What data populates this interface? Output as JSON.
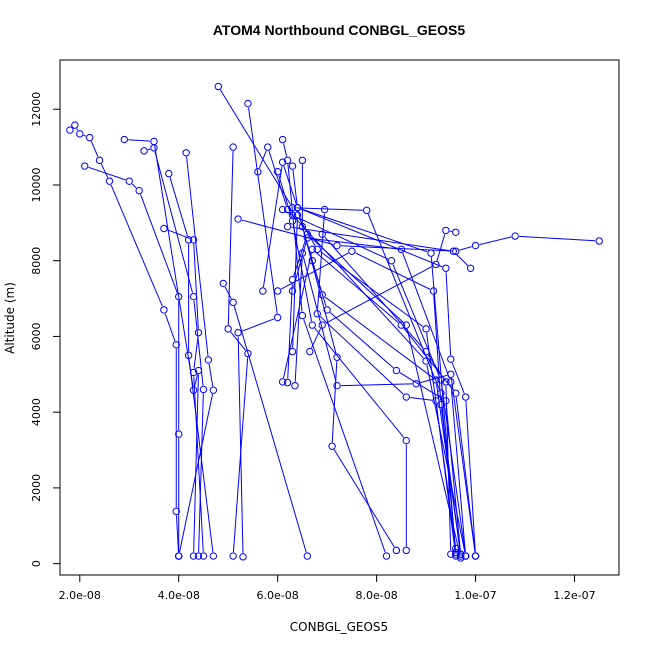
{
  "chart_data": {
    "type": "scatter",
    "title": "ATOM4 Northbound CONBGL_GEOS5",
    "xlabel": "CONBGL_GEOS5",
    "ylabel": "Altitude (m)",
    "xlim": [
      1.6e-08,
      1.29e-07
    ],
    "ylim": [
      -300,
      13300
    ],
    "xticks": [
      {
        "value": 2e-08,
        "label": "2.0e-08"
      },
      {
        "value": 4e-08,
        "label": "4.0e-08"
      },
      {
        "value": 6e-08,
        "label": "6.0e-08"
      },
      {
        "value": 8e-08,
        "label": "8.0e-08"
      },
      {
        "value": 1e-07,
        "label": "1.0e-07"
      },
      {
        "value": 1.2e-07,
        "label": "1.2e-07"
      }
    ],
    "yticks": [
      {
        "value": 0,
        "label": "0"
      },
      {
        "value": 2000,
        "label": "2000"
      },
      {
        "value": 4000,
        "label": "4000"
      },
      {
        "value": 6000,
        "label": "6000"
      },
      {
        "value": 8000,
        "label": "8000"
      },
      {
        "value": 10000,
        "label": "10000"
      },
      {
        "value": 12000,
        "label": "12000"
      }
    ],
    "grid": false,
    "legend": "none",
    "color": "#0000ff",
    "markers": "open-circle",
    "series": [
      {
        "points": [
          [
            1.8e-08,
            11450
          ],
          [
            1.9e-08,
            11580
          ],
          [
            2e-08,
            11350
          ],
          [
            2.2e-08,
            11250
          ],
          [
            2.4e-08,
            10650
          ],
          [
            2.6e-08,
            10100
          ],
          [
            3.7e-08,
            6700
          ],
          [
            3.95e-08,
            5780
          ],
          [
            3.95e-08,
            1380
          ],
          [
            4e-08,
            200
          ]
        ]
      },
      {
        "points": [
          [
            2.1e-08,
            10500
          ],
          [
            3e-08,
            10100
          ],
          [
            3.2e-08,
            9850
          ],
          [
            4e-08,
            7050
          ],
          [
            4e-08,
            3420
          ],
          [
            4e-08,
            200
          ]
        ]
      },
      {
        "points": [
          [
            2.9e-08,
            11200
          ],
          [
            3.5e-08,
            11150
          ],
          [
            4.3e-08,
            4580
          ],
          [
            4.4e-08,
            5100
          ],
          [
            4.3e-08,
            200
          ]
        ]
      },
      {
        "points": [
          [
            3.3e-08,
            10900
          ],
          [
            3.5e-08,
            10980
          ],
          [
            4.3e-08,
            7050
          ],
          [
            4.5e-08,
            4600
          ],
          [
            4.4e-08,
            200
          ]
        ]
      },
      {
        "points": [
          [
            3.8e-08,
            10300
          ],
          [
            4.2e-08,
            8550
          ],
          [
            4.2e-08,
            5500
          ],
          [
            4.7e-08,
            200
          ]
        ]
      },
      {
        "points": [
          [
            3.7e-08,
            8850
          ],
          [
            4.3e-08,
            8550
          ],
          [
            4.4e-08,
            6100
          ],
          [
            4.3e-08,
            5050
          ],
          [
            4.5e-08,
            200
          ]
        ]
      },
      {
        "points": [
          [
            4.15e-08,
            10850
          ],
          [
            4.6e-08,
            5380
          ],
          [
            4.7e-08,
            4580
          ],
          [
            4e-08,
            200
          ]
        ]
      },
      {
        "points": [
          [
            4.8e-08,
            12600
          ],
          [
            6.3e-08,
            9400
          ],
          [
            7.8e-08,
            9330
          ],
          [
            9.3e-08,
            4500
          ],
          [
            9.6e-08,
            300
          ]
        ]
      },
      {
        "points": [
          [
            5.1e-08,
            11000
          ],
          [
            5e-08,
            6200
          ],
          [
            5.4e-08,
            5550
          ],
          [
            5.1e-08,
            200
          ]
        ]
      },
      {
        "points": [
          [
            5.4e-08,
            12150
          ],
          [
            6e-08,
            6500
          ],
          [
            5.2e-08,
            6100
          ],
          [
            5.3e-08,
            180
          ]
        ]
      },
      {
        "points": [
          [
            4.9e-08,
            7400
          ],
          [
            5.1e-08,
            6900
          ],
          [
            6.6e-08,
            200
          ]
        ]
      },
      {
        "points": [
          [
            5.2e-08,
            9100
          ],
          [
            7.2e-08,
            8400
          ],
          [
            9.6e-08,
            8250
          ],
          [
            1e-07,
            8400
          ],
          [
            1.08e-07,
            8650
          ],
          [
            1.25e-07,
            8520
          ]
        ]
      },
      {
        "points": [
          [
            5.6e-08,
            10350
          ],
          [
            5.8e-08,
            11000
          ],
          [
            6.2e-08,
            9350
          ],
          [
            9e-08,
            5350
          ],
          [
            9.8e-08,
            200
          ]
        ]
      },
      {
        "points": [
          [
            5.7e-08,
            7200
          ],
          [
            6.1e-08,
            10600
          ],
          [
            6.4e-08,
            9400
          ],
          [
            9.1e-08,
            8200
          ],
          [
            9.6e-08,
            250
          ]
        ]
      },
      {
        "points": [
          [
            6.1e-08,
            11200
          ],
          [
            6.2e-08,
            10650
          ],
          [
            6.5e-08,
            6550
          ],
          [
            8.2e-08,
            200
          ]
        ]
      },
      {
        "points": [
          [
            6e-08,
            10350
          ],
          [
            6.3e-08,
            9050
          ],
          [
            6.7e-08,
            6300
          ],
          [
            8.6e-08,
            3250
          ],
          [
            8.6e-08,
            350
          ]
        ]
      },
      {
        "points": [
          [
            6.3e-08,
            10500
          ],
          [
            6.4e-08,
            9400
          ],
          [
            7.2e-08,
            5450
          ],
          [
            7.1e-08,
            3100
          ],
          [
            8.4e-08,
            350
          ]
        ]
      },
      {
        "points": [
          [
            6.5e-08,
            10650
          ],
          [
            6.5e-08,
            8900
          ],
          [
            6.9e-08,
            7100
          ],
          [
            9.2e-08,
            4850
          ],
          [
            9.7e-08,
            250
          ]
        ]
      },
      {
        "points": [
          [
            6.2e-08,
            4780
          ],
          [
            6.3e-08,
            7500
          ],
          [
            6.6e-08,
            8700
          ],
          [
            8.6e-08,
            6300
          ],
          [
            9.7e-08,
            150
          ]
        ]
      },
      {
        "points": [
          [
            6.3e-08,
            5600
          ],
          [
            6.4e-08,
            9200
          ],
          [
            6.8e-08,
            8300
          ],
          [
            9e-08,
            6200
          ],
          [
            9.6e-08,
            400
          ]
        ]
      },
      {
        "points": [
          [
            6.35e-08,
            4700
          ],
          [
            6.5e-08,
            8200
          ],
          [
            7.2e-08,
            4700
          ],
          [
            8.8e-08,
            4750
          ],
          [
            9.5e-08,
            5000
          ],
          [
            1e-07,
            200
          ]
        ]
      },
      {
        "points": [
          [
            6.1e-08,
            9350
          ],
          [
            6.3e-08,
            9200
          ],
          [
            8.3e-08,
            8000
          ],
          [
            9.3e-08,
            4850
          ],
          [
            9.8e-08,
            200
          ]
        ]
      },
      {
        "points": [
          [
            6.95e-08,
            9350
          ],
          [
            6.8e-08,
            6600
          ],
          [
            8.6e-08,
            4400
          ],
          [
            9.2e-08,
            4300
          ],
          [
            9.6e-08,
            200
          ]
        ]
      },
      {
        "points": [
          [
            6.7e-08,
            8000
          ],
          [
            7e-08,
            6700
          ],
          [
            8.4e-08,
            5100
          ],
          [
            9.4e-08,
            4300
          ],
          [
            9.7e-08,
            250
          ]
        ]
      },
      {
        "points": [
          [
            6.65e-08,
            5600
          ],
          [
            6.9e-08,
            6300
          ],
          [
            9.2e-08,
            7900
          ],
          [
            9.4e-08,
            8800
          ],
          [
            9.6e-08,
            8750
          ]
        ]
      },
      {
        "points": [
          [
            6.3e-08,
            7200
          ],
          [
            6.6e-08,
            8600
          ],
          [
            8.5e-08,
            8300
          ],
          [
            9.5e-08,
            4800
          ],
          [
            9.8e-08,
            200
          ]
        ]
      },
      {
        "points": [
          [
            6e-08,
            7200
          ],
          [
            7.5e-08,
            8250
          ],
          [
            9.15e-08,
            7200
          ],
          [
            9.3e-08,
            4200
          ],
          [
            9.7e-08,
            200
          ]
        ]
      },
      {
        "points": [
          [
            6.1e-08,
            4800
          ],
          [
            6.7e-08,
            8300
          ],
          [
            8.5e-08,
            6300
          ],
          [
            9.6e-08,
            4500
          ],
          [
            1e-07,
            200
          ]
        ]
      },
      {
        "points": [
          [
            6.4e-08,
            9400
          ],
          [
            9.4e-08,
            7800
          ],
          [
            9.5e-08,
            5400
          ],
          [
            9.8e-08,
            4400
          ],
          [
            1e-07,
            200
          ]
        ]
      },
      {
        "points": [
          [
            6.2e-08,
            8900
          ],
          [
            9.55e-08,
            8250
          ],
          [
            9.9e-08,
            7800
          ]
        ]
      },
      {
        "points": [
          [
            6.9e-08,
            8700
          ],
          [
            9e-08,
            5600
          ],
          [
            9.4e-08,
            4800
          ],
          [
            9.5e-08,
            250
          ]
        ]
      }
    ]
  }
}
